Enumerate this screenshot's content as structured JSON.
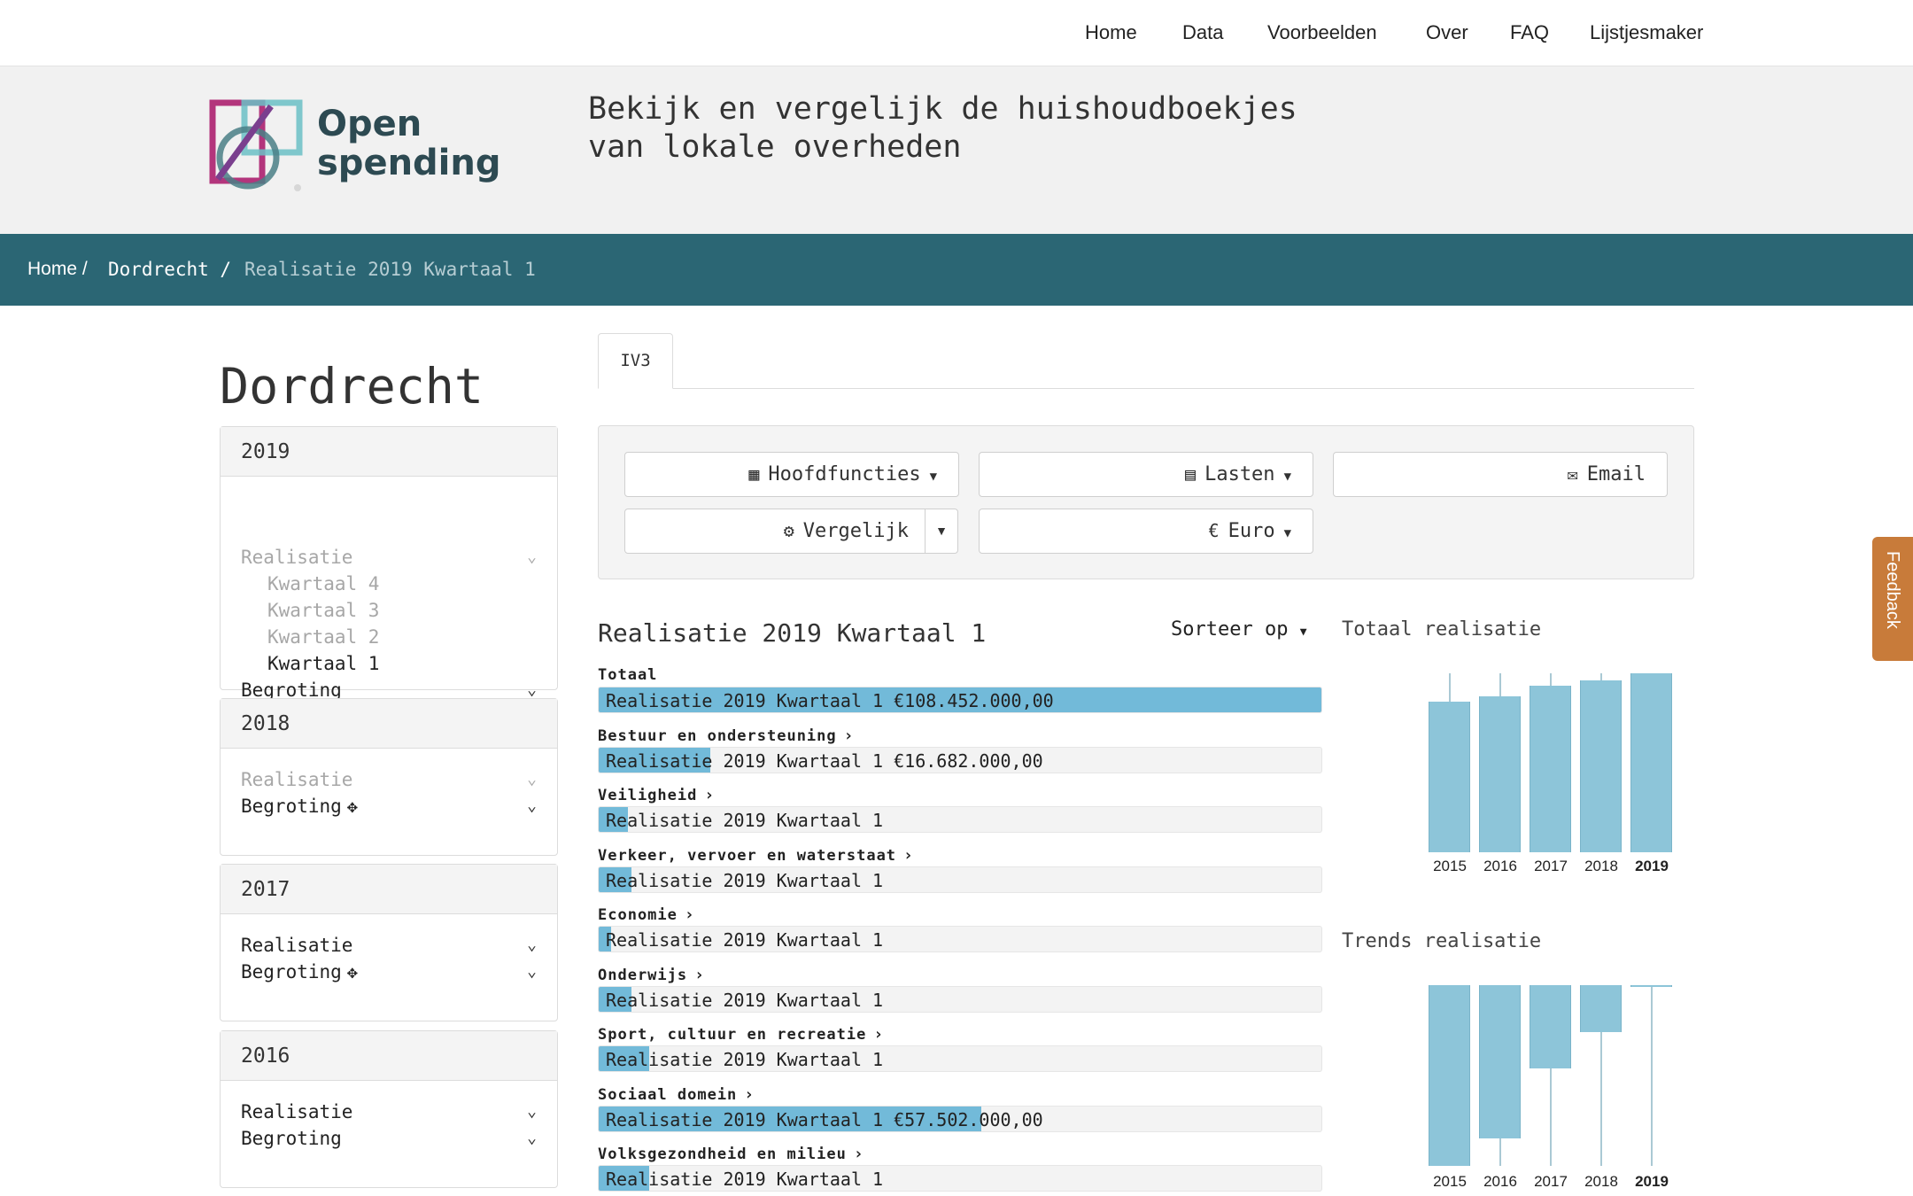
{
  "topnav": {
    "items": [
      "Home",
      "Data",
      "Voorbeelden",
      "Over",
      "FAQ",
      "Lijstjesmaker"
    ]
  },
  "header": {
    "logo_line1": "Open",
    "logo_line2": "spending",
    "tagline_line1": "Bekijk en vergelijk de huishoudboekjes",
    "tagline_line2": "van lokale overheden"
  },
  "breadcrumb": {
    "home": "Home /",
    "city": "Dordrecht /",
    "current": "Realisatie 2019 Kwartaal 1"
  },
  "sidebar": {
    "city": "Dordrecht",
    "years": [
      {
        "year": "2019",
        "realisatie": "Realisatie",
        "quarters": [
          "Kwartaal 4",
          "Kwartaal 3",
          "Kwartaal 2",
          "Kwartaal 1"
        ],
        "begroting": "Begroting"
      },
      {
        "year": "2018",
        "realisatie": "Realisatie",
        "begroting": "Begroting"
      },
      {
        "year": "2017",
        "realisatie": "Realisatie",
        "begroting": "Begroting"
      },
      {
        "year": "2016",
        "realisatie": "Realisatie",
        "begroting": "Begroting"
      }
    ]
  },
  "tabs": {
    "active": "IV3"
  },
  "controls": {
    "hoofdfuncties": "Hoofdfuncties",
    "lasten": "Lasten",
    "email": "Email",
    "vergelijk": "Vergelijk",
    "euro": "Euro"
  },
  "content": {
    "title": "Realisatie 2019 Kwartaal 1",
    "sort_label": "Sorteer op",
    "totals_title": "Totaal realisatie",
    "trends_title": "Trends realisatie",
    "rows": [
      {
        "label": "Totaal",
        "bar_text": "Realisatie 2019 Kwartaal 1 €108.452.000,00",
        "fill": 1.0,
        "has_chevron": false
      },
      {
        "label": "Bestuur en ondersteuning",
        "bar_text": "Realisatie 2019 Kwartaal 1 €16.682.000,00",
        "fill": 0.155,
        "has_chevron": true
      },
      {
        "label": "Veiligheid",
        "bar_text": "Realisatie 2019 Kwartaal 1",
        "fill": 0.04,
        "has_chevron": true
      },
      {
        "label": "Verkeer, vervoer en waterstaat",
        "bar_text": "Realisatie 2019 Kwartaal 1",
        "fill": 0.045,
        "has_chevron": true
      },
      {
        "label": "Economie",
        "bar_text": "Realisatie 2019 Kwartaal 1",
        "fill": 0.017,
        "has_chevron": true
      },
      {
        "label": "Onderwijs",
        "bar_text": "Realisatie 2019 Kwartaal 1",
        "fill": 0.045,
        "has_chevron": true
      },
      {
        "label": "Sport, cultuur en recreatie",
        "bar_text": "Realisatie 2019 Kwartaal 1",
        "fill": 0.07,
        "has_chevron": true
      },
      {
        "label": "Sociaal domein",
        "bar_text": "Realisatie 2019 Kwartaal 1 €57.502.000,00",
        "fill": 0.53,
        "has_chevron": true
      },
      {
        "label": "Volksgezondheid en milieu",
        "bar_text": "Realisatie 2019 Kwartaal 1",
        "fill": 0.07,
        "has_chevron": true
      }
    ]
  },
  "totals_chart": {
    "years": [
      "2015",
      "2016",
      "2017",
      "2018",
      "2019"
    ],
    "values": [
      0.84,
      0.87,
      0.93,
      0.96,
      1.0
    ],
    "current": "2019"
  },
  "trends_chart": {
    "years": [
      "2015",
      "2016",
      "2017",
      "2018",
      "2019"
    ],
    "values": [
      1.0,
      0.85,
      0.46,
      0.26,
      0.0
    ],
    "current": "2019"
  },
  "feedback": "Feedback",
  "colors": {
    "accent": "#2b6674",
    "bar": "#72bad9",
    "feedback": "#c87b3a"
  }
}
